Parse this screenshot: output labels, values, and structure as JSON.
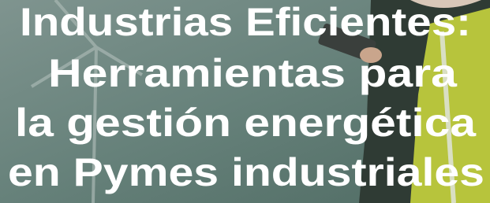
{
  "title_lines": [
    "Industrias Eficientes:",
    "Herramientas para",
    "la gestión energética",
    "en Pymes industriales"
  ]
}
